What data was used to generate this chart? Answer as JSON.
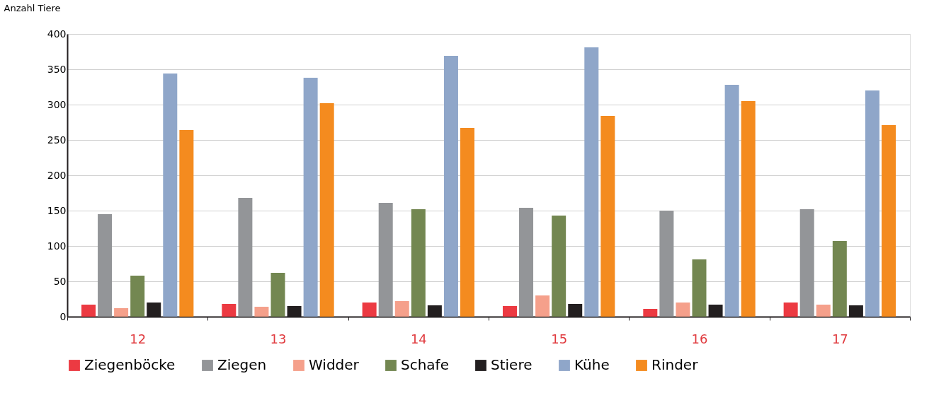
{
  "chart_data": {
    "type": "bar",
    "ylabel": "Anzahl Tiere",
    "categories": [
      "12",
      "13",
      "14",
      "15",
      "16",
      "17"
    ],
    "series": [
      {
        "name": "Ziegenböcke",
        "color": "#ec3a42",
        "values": [
          17,
          18,
          20,
          15,
          11,
          20
        ]
      },
      {
        "name": "Ziegen",
        "color": "#939598",
        "values": [
          145,
          168,
          161,
          154,
          150,
          152
        ]
      },
      {
        "name": "Widder",
        "color": "#f5a08b",
        "values": [
          12,
          14,
          22,
          30,
          20,
          17
        ]
      },
      {
        "name": "Schafe",
        "color": "#738751",
        "values": [
          58,
          62,
          152,
          143,
          81,
          107
        ]
      },
      {
        "name": "Stiere",
        "color": "#231f20",
        "values": [
          20,
          15,
          16,
          18,
          17,
          16
        ]
      },
      {
        "name": "Kühe",
        "color": "#8fa6c9",
        "values": [
          344,
          338,
          369,
          381,
          328,
          320
        ]
      },
      {
        "name": "Rinder",
        "color": "#f48b1f",
        "values": [
          264,
          302,
          267,
          284,
          305,
          271
        ]
      }
    ],
    "ylim": [
      0,
      400
    ],
    "yticks": [
      0,
      50,
      100,
      150,
      200,
      250,
      300,
      350,
      400
    ],
    "grid": "y",
    "legend": "bottom"
  }
}
